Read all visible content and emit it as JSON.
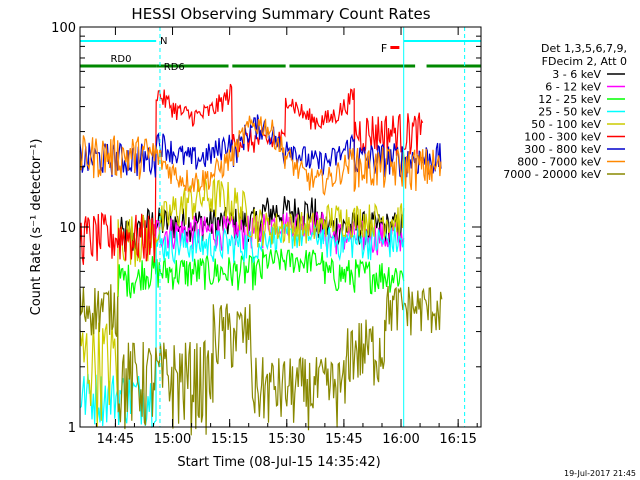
{
  "chart_data": {
    "type": "line",
    "title": "HESSI Observing Summary Count Rates",
    "xlabel": "Start Time (08-Jul-15 14:35:42)",
    "ylabel": "Count Rate (s⁻¹ detector⁻¹)",
    "yscale": "log",
    "ylim": [
      1,
      100
    ],
    "xlim_minutes": [
      0,
      105.3
    ],
    "x_tick_labels": [
      "14:45",
      "15:00",
      "15:15",
      "15:30",
      "15:45",
      "16:00",
      "16:15"
    ],
    "x_tick_minutes": [
      9.3,
      24.3,
      39.3,
      54.3,
      69.3,
      84.3,
      99.3
    ],
    "y_tick_labels": [
      "1",
      "10",
      "100"
    ],
    "y_tick_values": [
      1,
      10,
      100
    ],
    "legend": {
      "header": [
        "Det 1,3,5,6,7,9,",
        "FDecim 2, Att 0"
      ],
      "position": "right"
    },
    "series": [
      {
        "name": "3 - 6 keV",
        "color": "#000000",
        "level_max": 13
      },
      {
        "name": "6 - 12 keV",
        "color": "#ff00ff",
        "level_max": 12
      },
      {
        "name": "12 - 25 keV",
        "color": "#00ff00",
        "level_max": 7
      },
      {
        "name": "25 - 50 keV",
        "color": "#00ffff",
        "level_max": 10
      },
      {
        "name": "50 - 100 keV",
        "color": "#cccc00",
        "level_max": 15
      },
      {
        "name": "100 - 300 keV",
        "color": "#ff0000",
        "level_max": 45
      },
      {
        "name": "300 - 800 keV",
        "color": "#0000cc",
        "level_max": 30
      },
      {
        "name": "800 - 7000 keV",
        "color": "#ff8800",
        "level_max": 32
      },
      {
        "name": "7000 - 20000 keV",
        "color": "#888800",
        "level_max": 4
      }
    ],
    "flags": [
      {
        "label": "N",
        "color": "#00ffff"
      },
      {
        "label": "RD0",
        "color": "#008800"
      },
      {
        "label": "RD6",
        "color": "#008800"
      },
      {
        "label": "F",
        "color": "#ff0000"
      }
    ],
    "footer_date": "19-Jul-2017 21:45"
  }
}
